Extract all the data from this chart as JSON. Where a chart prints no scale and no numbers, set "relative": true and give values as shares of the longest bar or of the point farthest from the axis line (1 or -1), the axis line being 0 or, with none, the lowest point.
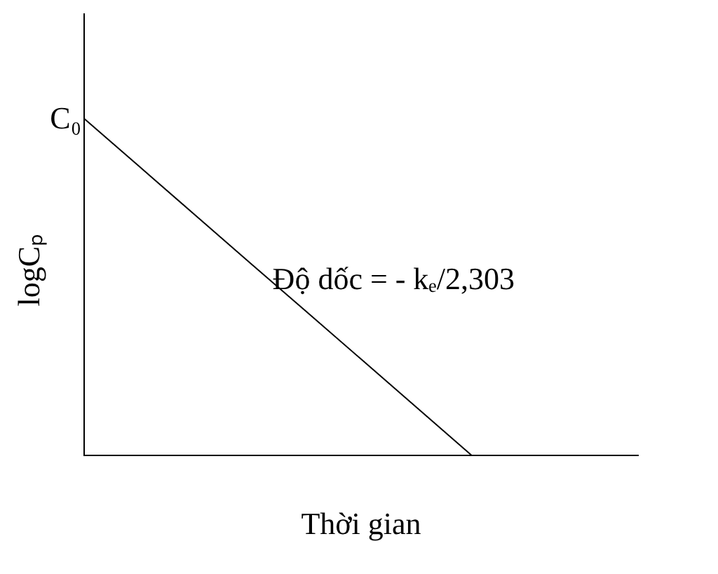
{
  "chart_data": {
    "type": "line",
    "relative": true,
    "xlabel": "Thời gian",
    "ylabel": "logCₚ",
    "categories": [
      null,
      null,
      null,
      null,
      null,
      null,
      null,
      null,
      null,
      null,
      null
    ],
    "series": [
      {
        "color": "#000000",
        "values": [
          1,
          0.857,
          0.714,
          0.571,
          0.429,
          0.286,
          0.143,
          0,
          null,
          null,
          null
        ]
      }
    ],
    "annotations": [
      "C₀",
      "Độ dốc = - kₑ/2,303"
    ],
    "marker": "none",
    "line_style": "solid",
    "grid": false,
    "legend": false
  }
}
